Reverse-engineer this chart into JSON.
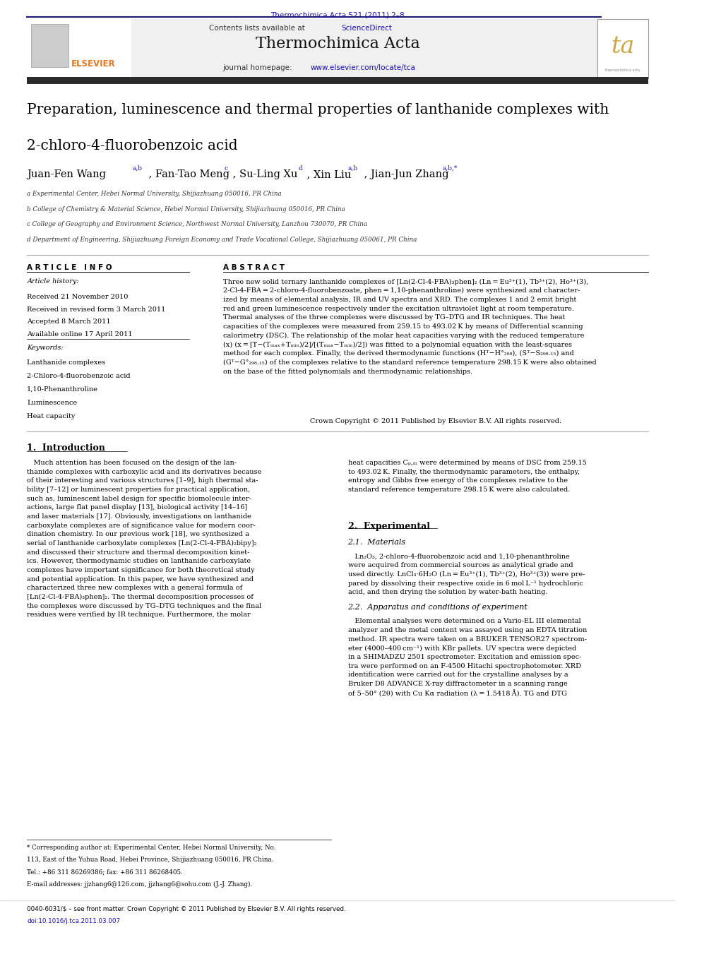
{
  "page_width": 10.21,
  "page_height": 13.51,
  "bg_color": "#ffffff",
  "journal_ref": "Thermochimica Acta 521 (2011) 2–8",
  "journal_ref_color": "#1a0dab",
  "journal_name": "Thermochimica Acta",
  "journal_homepage": "journal homepage: www.elsevier.com/locate/tca",
  "contents_text": "Contents lists available at ScienceDirect",
  "header_bg": "#f0f0f0",
  "paper_title_line1": "Preparation, luminescence and thermal properties of lanthanide complexes with",
  "paper_title_line2": "2-chloro-4-fluorobenzoic acid",
  "affiliation_a": "a Experimental Center, Hebei Normal University, Shijiazhuang 050016, PR China",
  "affiliation_b": "b College of Chemistry & Material Science, Hebei Normal University, Shijiazhuang 050016, PR China",
  "affiliation_c": "c College of Geography and Environment Science, Northwest Normal University, Lanzhou 730070, PR China",
  "affiliation_d": "d Department of Engineering, Shijiazhuang Foreign Economy and Trade Vocational College, Shijiazhuang 050061, PR China",
  "article_info_header": "A R T I C L E   I N F O",
  "abstract_header": "A B S T R A C T",
  "article_history_label": "Article history:",
  "received": "Received 21 November 2010",
  "received_revised": "Received in revised form 3 March 2011",
  "accepted": "Accepted 8 March 2011",
  "available": "Available online 17 April 2011",
  "keywords_label": "Keywords:",
  "keywords": [
    "Lanthanide complexes",
    "2-Chloro-4-fluorobenzoic acid",
    "1,10-Phenanthroline",
    "Luminescence",
    "Heat capacity"
  ],
  "copyright_text": "Crown Copyright © 2011 Published by Elsevier B.V. All rights reserved.",
  "footer_left": "0040-6031/$ – see front matter. Crown Copyright © 2011 Published by Elsevier B.V. All rights reserved.",
  "footer_doi": "doi:10.1016/j.tca.2011.03.007",
  "elsevier_color": "#e87722",
  "link_color": "#1a0dab",
  "dark_navy": "#1a1a6e",
  "black": "#000000",
  "dark_bar_color": "#2b2b2b"
}
